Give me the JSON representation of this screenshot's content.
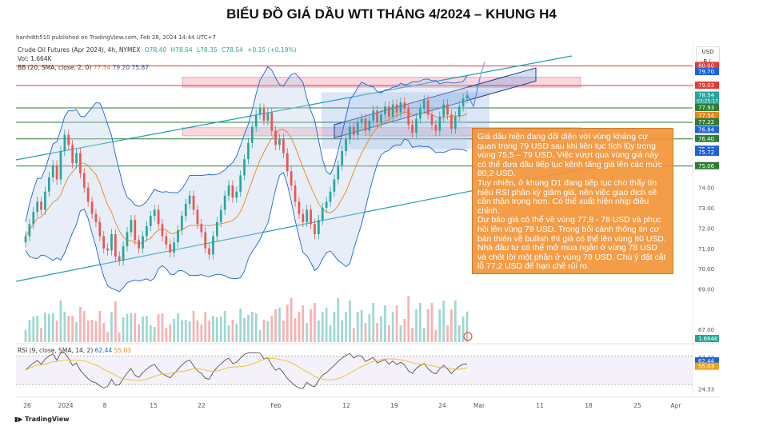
{
  "page_title": "BIỂU ĐỒ GIÁ DẦU WTI THÁNG 4/2024 – KHUNG H4",
  "published": "hanhdth510 published on TradingView.com, Feb 28, 2024 14:44 UTC+7",
  "symbol": {
    "name": "Crude Oil Futures (Apr 2024), 4h, NYMEX",
    "open": "O78.40",
    "high": "H78.54",
    "low": "L78.35",
    "close": "C78.54",
    "change": "+0.15 (+0.19%)"
  },
  "volume_label": "Vol: 1.664K",
  "bb": {
    "label": "BB (20, SMA, close, 2, 0)",
    "basis": "77.54",
    "upper": "79.20",
    "lower": "75.87"
  },
  "rsi": {
    "label": "RSI (9, close, SMA, 14, 2)",
    "value": "62.44",
    "ma": "55.03"
  },
  "currency": {
    "unit": "USD",
    "menu": "B.I."
  },
  "annotation": [
    "Giá dầu hiện đang đối diện với vùng kháng cự quan trọng 79 USD sau khi liên tục tích lũy trong vùng 75,5 – 79 USD. Việc vượt qua vùng giá này có thể đưa dầu tiếp tục kênh tăng giá lên các mức 80,2 USD.",
    "Tuy nhiên, ở khung D1 đang tiếp tục cho thấy tín hiệu RSI phân kỳ giảm giá, nên việc giao dịch sẽ cần thận trọng hơn. Có thể xuất hiện nhịp điều chỉnh.",
    "Dự báo giá có thể về vùng 77,8 - 78 USD và phục hồi lên vùng 79 USD. Trong bối cảnh thông tin cơ bản thiên về bullish thì giá có thể lên vùng 80 USD. Nhà đầu tư có thể mở mua ngắn ở vùng 78 USD và chốt lời một phần ở vùng 79 USD. Chú ý đặt cắt lỗ 77,2 USD để hạn chế rủi ro."
  ],
  "logo": "TradingView",
  "chart_data": [
    {
      "type": "candlestick",
      "y_ticks": [
        "74.00",
        "73.00",
        "72.00",
        "71.00",
        "70.00",
        "69.00",
        "67.00"
      ],
      "ylim": [
        66.3,
        81.2
      ],
      "x_ticks": [
        "26",
        "2024",
        "8",
        "15",
        "22",
        "Feb",
        "12",
        "19",
        "24",
        "Mar",
        "11",
        "18",
        "25",
        "Apr"
      ],
      "price_labels": [
        {
          "value": "80.00",
          "color": "#e53935"
        },
        {
          "value": "79.70",
          "color": "#1e63d6"
        },
        {
          "value": "79.03",
          "color": "#e53935"
        },
        {
          "value": "78.54",
          "color": "#26a69a",
          "sub": "03:25:17"
        },
        {
          "value": "77.93",
          "color": "#2e7d32"
        },
        {
          "value": "77.54",
          "color": "#e8851b"
        },
        {
          "value": "77.22",
          "color": "#2e7d32"
        },
        {
          "value": "76.84",
          "color": "#1e63d6"
        },
        {
          "value": "76.40",
          "color": "#2e7d32"
        },
        {
          "value": "75.87",
          "color": "#1e63d6"
        },
        {
          "value": "75.72",
          "color": "#1e63d6"
        },
        {
          "value": "75.06",
          "color": "#2e7d32"
        },
        {
          "value": "1.664K",
          "color": "#26a69a"
        }
      ],
      "horizontal_levels": [
        {
          "value": 80.0,
          "color": "#e53935"
        },
        {
          "value": 79.03,
          "color": "#e53935"
        },
        {
          "value": 77.93,
          "color": "#2e7d32"
        },
        {
          "value": 77.22,
          "color": "#2e7d32"
        },
        {
          "value": 76.4,
          "color": "#2e7d32"
        },
        {
          "value": 75.06,
          "color": "#2e7d32"
        }
      ],
      "zones": [
        {
          "from": 78.95,
          "to": 79.45,
          "color": "#f4b6c2"
        },
        {
          "from": 76.55,
          "to": 76.95,
          "color": "#f4b6c2"
        }
      ],
      "close_series": [
        71.6,
        72.2,
        72.8,
        73.3,
        72.9,
        73.8,
        74.5,
        75.1,
        74.4,
        75.8,
        76.6,
        76.1,
        75.2,
        75.7,
        74.7,
        74.0,
        73.3,
        72.7,
        72.3,
        71.6,
        71.0,
        70.9,
        71.7,
        70.6,
        70.4,
        71.1,
        71.8,
        72.4,
        71.4,
        71.0,
        71.6,
        72.1,
        72.6,
        72.9,
        72.2,
        71.6,
        71.2,
        70.8,
        71.3,
        71.9,
        72.6,
        73.2,
        73.6,
        72.9,
        72.2,
        71.8,
        71.0,
        70.7,
        71.6,
        72.3,
        72.9,
        73.6,
        74.1,
        73.5,
        73.8,
        74.6,
        75.4,
        76.2,
        77.0,
        77.6,
        77.9,
        77.3,
        77.7,
        76.8,
        76.1,
        76.4,
        75.7,
        74.8,
        74.1,
        73.3,
        72.7,
        72.3,
        72.9,
        72.2,
        71.7,
        72.4,
        73.0,
        73.3,
        73.8,
        74.4,
        75.1,
        75.8,
        76.4,
        77.0,
        76.6,
        77.2,
        77.4,
        76.8,
        77.3,
        77.8,
        77.2,
        77.6,
        78.0,
        77.5,
        78.1,
        77.7,
        78.2,
        77.9,
        77.1,
        76.7,
        77.4,
        77.9,
        78.3,
        77.6,
        77.1,
        76.8,
        77.5,
        78.1,
        77.6,
        76.9,
        77.5,
        78.0,
        78.4,
        78.54
      ],
      "rsi_ticks": [
        "67.77",
        "62.44",
        "55.03",
        "24.33"
      ],
      "rsi_ylim": [
        18,
        78
      ]
    }
  ]
}
